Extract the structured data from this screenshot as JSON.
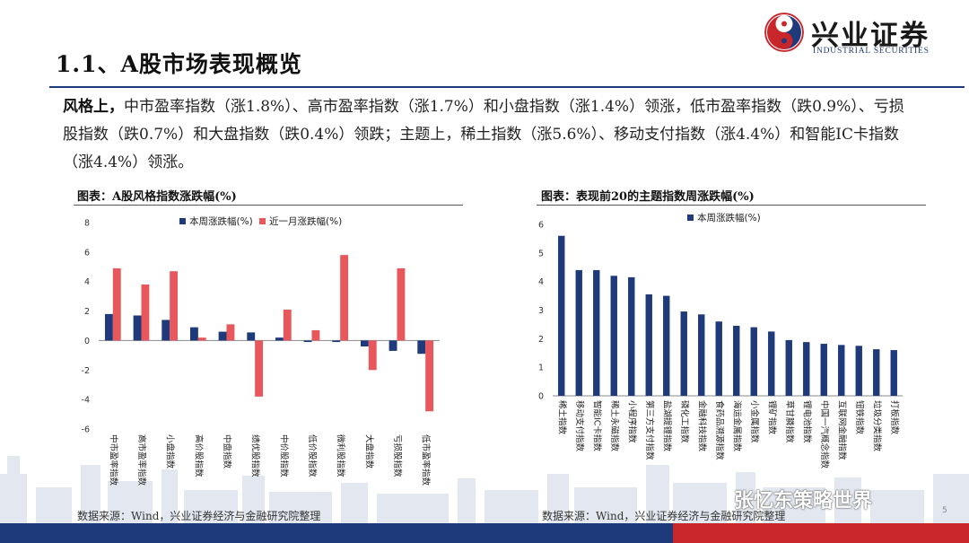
{
  "header": {
    "title": "1.1、A股市场表现概览",
    "logo_cn": "兴业证券",
    "logo_en": "INDUSTRIAL SECURITIES",
    "colors": {
      "brand_blue": "#1f3a7a",
      "brand_red": "#c9262c"
    }
  },
  "summary": {
    "lead": "风格上，",
    "body": "中市盈率指数（涨1.8%）、高市盈率指数（涨1.7%）和小盘指数（涨1.4%）领涨，低市盈率指数（跌0.9%）、亏损股指数（跌0.7%）和大盘指数（跌0.4%）领跌；主题上，稀土指数（涨5.6%）、移动支付指数（涨4.4%）和智能IC卡指数（涨4.4%）领涨。"
  },
  "left_chart": {
    "caption": "图表：A股风格指数涨跌幅(%)",
    "source": "数据来源：Wind，兴业证券经济与金融研究院整理"
  },
  "right_chart": {
    "caption": "图表：表现前20的主题指数周涨跌幅(%)",
    "source": "数据来源：Wind，兴业证券经济与金融研究院整理"
  },
  "watermark": "张忆东策略世界",
  "page_number": "5",
  "chart_data": [
    {
      "type": "bar",
      "categories": [
        "中市盈率指数",
        "高市盈率指数",
        "小盘指数",
        "高价股指数",
        "中盘指数",
        "绩优股指数",
        "中价股指数",
        "低价股指数",
        "微利股指数",
        "大盘指数",
        "亏损股指数",
        "低市盈率指数"
      ],
      "series": [
        {
          "name": "本周涨跌幅(%)",
          "color": "#1f3a7a",
          "values": [
            1.8,
            1.7,
            1.4,
            0.9,
            0.6,
            0.55,
            0.2,
            -0.1,
            -0.1,
            -0.4,
            -0.7,
            -0.9
          ]
        },
        {
          "name": "近一月涨跌幅(%)",
          "color": "#e8575c",
          "values": [
            4.9,
            3.8,
            4.7,
            0.2,
            1.1,
            -3.8,
            2.1,
            0.7,
            5.8,
            -2.0,
            4.9,
            -4.8
          ]
        }
      ],
      "ylim": [
        -6,
        8
      ],
      "yticks": [
        -6,
        -4,
        -2,
        0,
        2,
        4,
        6,
        8
      ],
      "legend": "top-center",
      "grid": false
    },
    {
      "type": "bar",
      "categories": [
        "稀土指数",
        "移动支付指数",
        "智能IC卡指数",
        "稀土永磁指数",
        "小程序指数",
        "第三方支付指数",
        "盐湖提锂指数",
        "磷化工指数",
        "金融科技指数",
        "食药品溯源指数",
        "海运金属指数",
        "小金属指数",
        "锂矿指数",
        "草甘膦指数",
        "锂电池指数",
        "中国一汽概念指数",
        "互联网金融指数",
        "钮铁指数",
        "垃圾分类指数",
        "打板指数"
      ],
      "series": [
        {
          "name": "本周涨跌幅(%)",
          "color": "#1f3a7a",
          "values": [
            5.6,
            4.4,
            4.4,
            4.2,
            4.15,
            3.55,
            3.5,
            2.95,
            2.85,
            2.6,
            2.45,
            2.4,
            2.25,
            1.95,
            1.88,
            1.82,
            1.78,
            1.75,
            1.63,
            1.6
          ]
        }
      ],
      "ylim": [
        0,
        6
      ],
      "yticks": [
        0,
        1,
        2,
        3,
        4,
        5,
        6
      ],
      "legend": "top-left",
      "grid": false
    }
  ]
}
